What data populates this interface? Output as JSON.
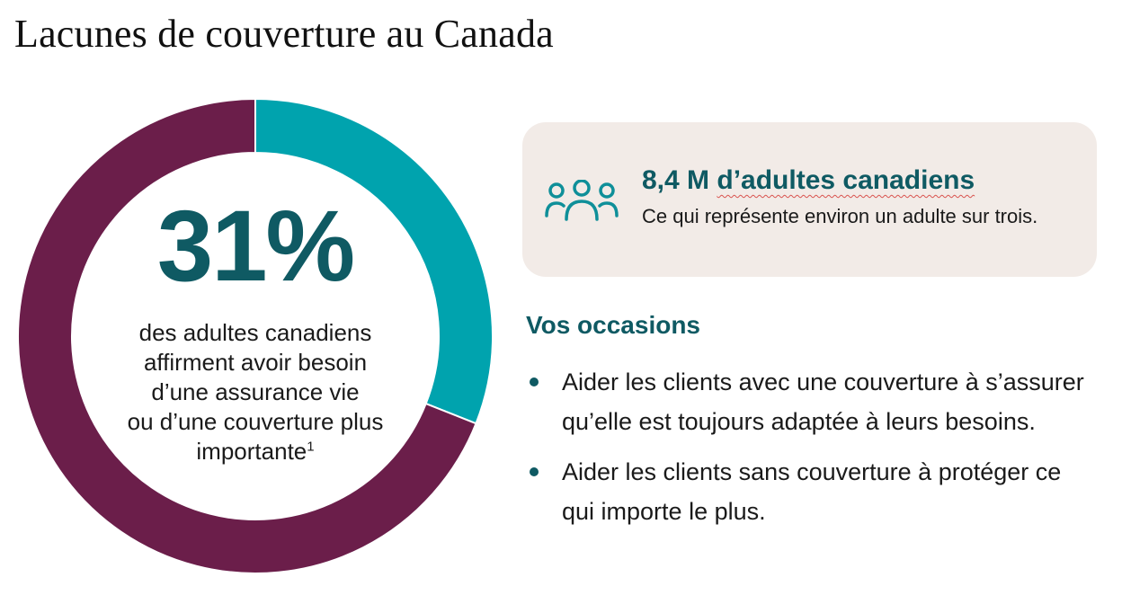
{
  "page": {
    "title": "Lacunes de couverture au Canada"
  },
  "chart_data": {
    "type": "pie",
    "variant": "donut",
    "categories": [
      "",
      ""
    ],
    "values": [
      31,
      69
    ],
    "colors": [
      "#00a3ae",
      "#6b1e4a"
    ],
    "center_value": "31%",
    "center_text": "des adultes canadiens affirment avoir besoin d’une assurance vie ou d’une couverture plus importante",
    "center_text_lines": [
      "des adultes canadiens",
      "affirment avoir besoin",
      "d’une assurance vie",
      "ou d’une couverture plus",
      "importante"
    ],
    "footnote_mark": "1"
  },
  "stat_card": {
    "icon": "people-group-icon",
    "value_prefix": "8,4 M ",
    "value_suffix": "d’adultes canadiens",
    "description": "Ce qui représente environ un adulte sur trois."
  },
  "opportunities": {
    "heading": "Vos occasions",
    "items": [
      "Aider les clients avec une couverture à s’assurer qu’elle est toujours adaptée à leurs besoins.",
      "Aider les clients sans couverture à protéger ce qui importe le plus."
    ]
  },
  "colors": {
    "teal": "#00a3ae",
    "plum": "#6b1e4a",
    "heading_teal": "#0f5a63",
    "card_bg": "#f2ebe7"
  }
}
